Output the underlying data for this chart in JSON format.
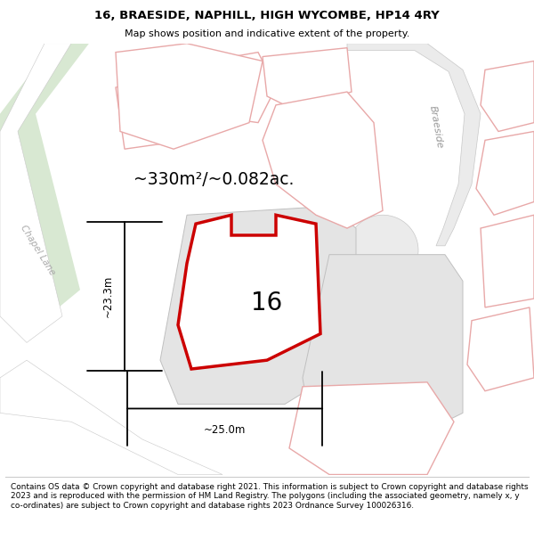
{
  "title": "16, BRAESIDE, NAPHILL, HIGH WYCOMBE, HP14 4RY",
  "subtitle": "Map shows position and indicative extent of the property.",
  "footer": "Contains OS data © Crown copyright and database right 2021. This information is subject to Crown copyright and database rights 2023 and is reproduced with the permission of HM Land Registry. The polygons (including the associated geometry, namely x, y co-ordinates) are subject to Crown copyright and database rights 2023 Ordnance Survey 100026316.",
  "area_text": "~330m²/~0.082ac.",
  "label_16": "16",
  "dim_width": "~25.0m",
  "dim_height": "~23.3m",
  "road_label_braeside": "Braeside",
  "road_label_chapel": "Chapel Lane",
  "bg_color": "#ffffff",
  "map_bg": "#f8f8f8",
  "plot_fill": "#ffffff",
  "plot_stroke": "#cc0000",
  "road_fill_light": "#ebebeb",
  "road_stroke": "#c8c8c8",
  "green_fill": "#d8e8d2",
  "pink_stroke": "#e8a8a8",
  "gray_plot_fill": "#e4e4e4",
  "gray_plot_stroke": "#c0c0c0",
  "figsize": [
    6.0,
    6.25
  ],
  "dpi": 100
}
